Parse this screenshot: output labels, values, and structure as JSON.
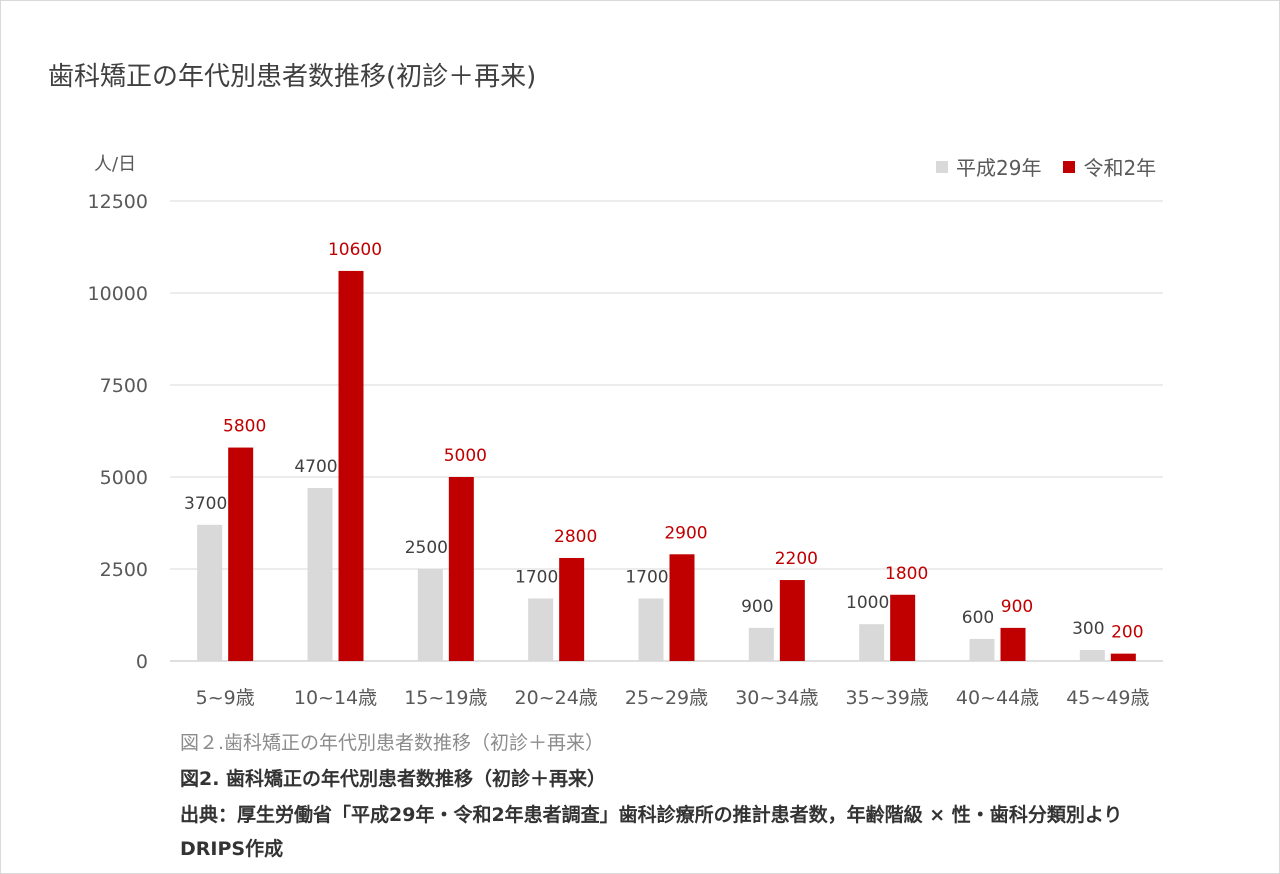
{
  "chart_data": {
    "type": "bar",
    "title": "歯科矯正の年代別患者数推移(初診＋再来)",
    "ylabel": "人/日",
    "xlabel": "",
    "ylim": [
      0,
      12500
    ],
    "yticks": [
      0,
      2500,
      5000,
      7500,
      10000,
      12500
    ],
    "grid": true,
    "legend_position": "top-right",
    "categories": [
      "5~9歳",
      "10~14歳",
      "15~19歳",
      "20~24歳",
      "25~29歳",
      "30~34歳",
      "35~39歳",
      "40~44歳",
      "45~49歳"
    ],
    "series": [
      {
        "name": "平成29年",
        "color": "#d9d9d9",
        "label_color": "#404040",
        "values": [
          3700,
          4700,
          2500,
          1700,
          1700,
          900,
          1000,
          600,
          300
        ]
      },
      {
        "name": "令和2年",
        "color": "#c00000",
        "label_color": "#c00000",
        "values": [
          5800,
          10600,
          5000,
          2800,
          2900,
          2200,
          1800,
          900,
          200
        ]
      }
    ]
  },
  "caption": "図２.歯科矯正の年代別患者数推移（初診＋再来）",
  "caption_bold": "図2. 歯科矯正の年代別患者数推移（初診＋再来）",
  "source": "出典：厚生労働省「平成29年・令和2年患者調査」歯科診療所の推計患者数，年齢階級 × 性・歯科分類別より　　DRIPS作成"
}
